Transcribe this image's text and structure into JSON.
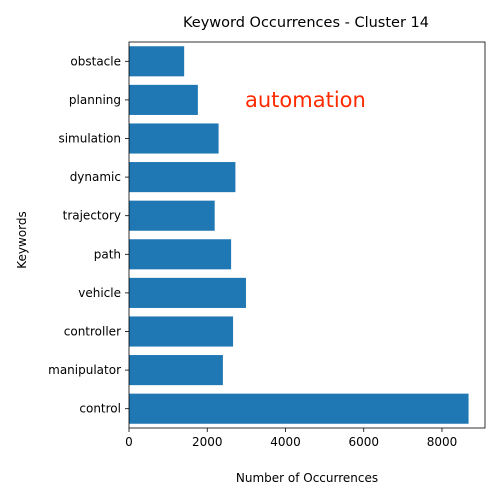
{
  "chart_data": {
    "type": "bar",
    "orientation": "horizontal",
    "title": "Keyword Occurrences - Cluster 14",
    "xlabel": "Number of Occurrences",
    "ylabel": "Keywords",
    "categories": [
      "control",
      "manipulator",
      "controller",
      "vehicle",
      "path",
      "trajectory",
      "dynamic",
      "simulation",
      "planning",
      "obstacle"
    ],
    "values": [
      8680,
      2400,
      2660,
      2990,
      2610,
      2190,
      2720,
      2290,
      1760,
      1410
    ],
    "xlim": [
      0,
      9100
    ],
    "xticks": [
      0,
      2000,
      4000,
      6000,
      8000
    ],
    "xtick_labels": [
      "0",
      "2000",
      "4000",
      "6000",
      "8000"
    ],
    "bar_color": "#1f77b4",
    "grid": false,
    "annotation": {
      "text": "automation",
      "color": "#ff2a00"
    }
  }
}
